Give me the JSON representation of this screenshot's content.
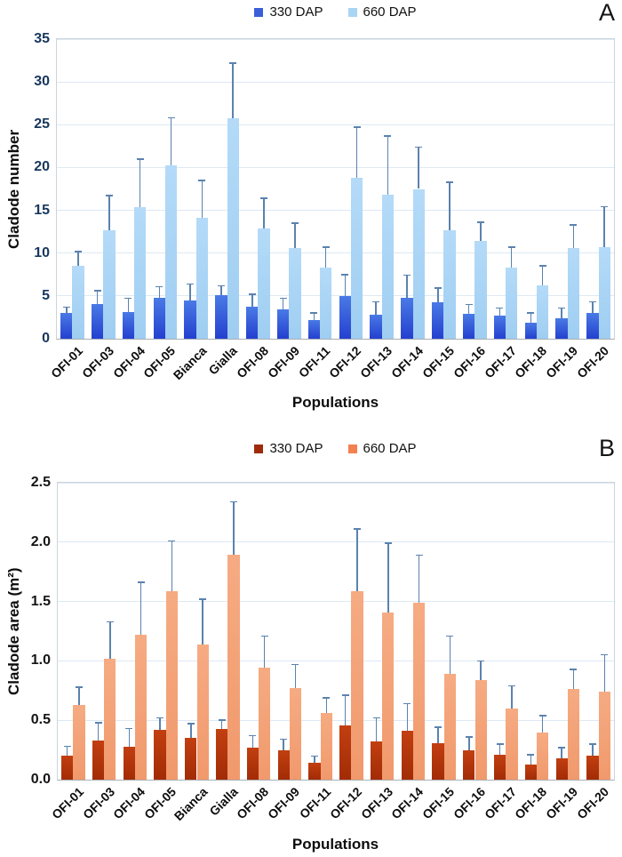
{
  "figure": {
    "description": "Two-panel bar chart of cladode traits per population"
  },
  "chart_data": [
    {
      "type": "bar",
      "panel_label": "A",
      "ylabel": "Cladode number",
      "xlabel": "Populations",
      "ylim": [
        0,
        35
      ],
      "ytick_step": 5,
      "ytick_decimals": 0,
      "grid": true,
      "legend_position": "top-center",
      "error_bar_color": "#5b82ae",
      "tick_color": "#17375e",
      "categories": [
        "OFI-01",
        "OFI-03",
        "OFI-04",
        "OFI-05",
        "Bianca",
        "Gialla",
        "OFI-08",
        "OFI-09",
        "OFI-11",
        "OFI-12",
        "OFI-13",
        "OFI-14",
        "OFI-15",
        "OFI-16",
        "OFI-17",
        "OFI-18",
        "OFI-19",
        "OFI-20"
      ],
      "series": [
        {
          "name": "330 DAP",
          "legend_color": "#3a5fd8",
          "color_top": "#4a7ae6",
          "color_bottom": "#2440cf",
          "values": [
            3.0,
            4.0,
            3.1,
            4.8,
            4.5,
            5.1,
            3.7,
            3.4,
            2.2,
            5.0,
            2.8,
            4.8,
            4.3,
            2.9,
            2.7,
            1.9,
            2.4,
            3.0
          ],
          "errors": [
            0.7,
            1.6,
            1.6,
            1.3,
            1.9,
            1.1,
            1.5,
            1.3,
            0.8,
            2.5,
            1.5,
            2.6,
            1.6,
            1.1,
            0.9,
            1.1,
            1.2,
            1.3
          ]
        },
        {
          "name": "660 DAP",
          "legend_color": "#a9d5f5",
          "color_top": "#b4daf8",
          "color_bottom": "#9fcef2",
          "values": [
            8.5,
            12.7,
            15.4,
            20.3,
            14.1,
            25.8,
            12.9,
            10.6,
            8.3,
            18.8,
            16.8,
            17.5,
            12.7,
            11.4,
            8.3,
            6.2,
            10.6,
            10.7
          ],
          "errors": [
            1.7,
            4.0,
            5.6,
            5.5,
            4.4,
            6.4,
            3.5,
            2.9,
            2.4,
            5.9,
            6.9,
            4.9,
            5.6,
            2.2,
            2.4,
            2.3,
            2.7,
            4.7
          ]
        }
      ]
    },
    {
      "type": "bar",
      "panel_label": "B",
      "ylabel": "Cladode area (m²)",
      "xlabel": "Populations",
      "ylim": [
        0,
        2.5
      ],
      "ytick_step": 0.5,
      "ytick_decimals": 1,
      "grid": true,
      "legend_position": "top-center",
      "error_bar_color": "#5b82ae",
      "tick_color": "#141414",
      "categories": [
        "OFI-01",
        "OFI-03",
        "OFI-04",
        "OFI-05",
        "Bianca",
        "Gialla",
        "OFI-08",
        "OFI-09",
        "OFI-11",
        "OFI-12",
        "OFI-13",
        "OFI-14",
        "OFI-15",
        "OFI-16",
        "OFI-17",
        "OFI-18",
        "OFI-19",
        "OFI-20"
      ],
      "series": [
        {
          "name": "330 DAP",
          "legend_color": "#9e2a0a",
          "color_top": "#c23f10",
          "color_bottom": "#a22c06",
          "values": [
            0.2,
            0.33,
            0.28,
            0.42,
            0.35,
            0.43,
            0.27,
            0.25,
            0.14,
            0.46,
            0.32,
            0.41,
            0.31,
            0.25,
            0.21,
            0.13,
            0.18,
            0.2
          ],
          "errors": [
            0.08,
            0.15,
            0.15,
            0.1,
            0.12,
            0.07,
            0.1,
            0.09,
            0.06,
            0.25,
            0.2,
            0.23,
            0.13,
            0.11,
            0.09,
            0.08,
            0.09,
            0.1
          ]
        },
        {
          "name": "660 DAP",
          "legend_color": "#f48050",
          "color_top": "#f6ab82",
          "color_bottom": "#f1996d",
          "values": [
            0.63,
            1.02,
            1.22,
            1.59,
            1.14,
            1.89,
            0.94,
            0.77,
            0.56,
            1.59,
            1.41,
            1.49,
            0.89,
            0.84,
            0.6,
            0.4,
            0.76,
            0.74
          ],
          "errors": [
            0.15,
            0.31,
            0.44,
            0.42,
            0.38,
            0.45,
            0.27,
            0.2,
            0.13,
            0.52,
            0.58,
            0.4,
            0.32,
            0.16,
            0.19,
            0.14,
            0.17,
            0.31
          ]
        }
      ]
    }
  ]
}
